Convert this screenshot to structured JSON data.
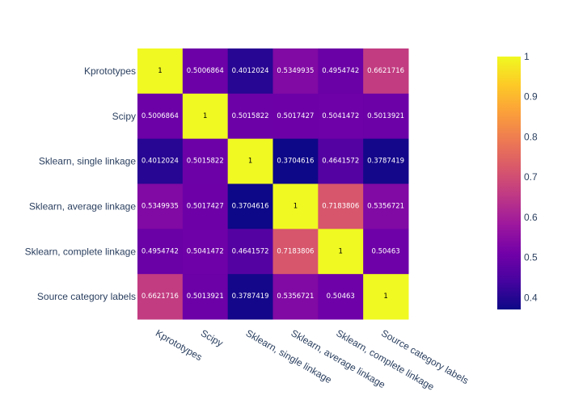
{
  "chart_data": {
    "type": "heatmap",
    "title": "",
    "xlabel": "",
    "ylabel": "",
    "x_categories": [
      "Kprototypes",
      "Scipy",
      "Sklearn, single linkage",
      "Sklearn, average linkage",
      "Sklearn, complete linkage",
      "Source category labels"
    ],
    "y_categories": [
      "Kprototypes",
      "Scipy",
      "Sklearn, single linkage",
      "Sklearn, average linkage",
      "Sklearn, complete linkage",
      "Source category labels"
    ],
    "values": [
      [
        1,
        0.5006864,
        0.4012024,
        0.5349935,
        0.4954742,
        0.6621716
      ],
      [
        0.5006864,
        1,
        0.5015822,
        0.5017427,
        0.5041472,
        0.5013921
      ],
      [
        0.4012024,
        0.5015822,
        1,
        0.3704616,
        0.4641572,
        0.3787419
      ],
      [
        0.5349935,
        0.5017427,
        0.3704616,
        1,
        0.7183806,
        0.5356721
      ],
      [
        0.4954742,
        0.5041472,
        0.4641572,
        0.7183806,
        1,
        0.50463
      ],
      [
        0.6621716,
        0.5013921,
        0.3787419,
        0.5356721,
        0.50463,
        1
      ]
    ],
    "cell_labels": [
      [
        "1",
        "0.5006864",
        "0.4012024",
        "0.5349935",
        "0.4954742",
        "0.6621716"
      ],
      [
        "0.5006864",
        "1",
        "0.5015822",
        "0.5017427",
        "0.5041472",
        "0.5013921"
      ],
      [
        "0.4012024",
        "0.5015822",
        "1",
        "0.3704616",
        "0.4641572",
        "0.3787419"
      ],
      [
        "0.5349935",
        "0.5017427",
        "0.3704616",
        "1",
        "0.7183806",
        "0.5356721"
      ],
      [
        "0.4954742",
        "0.5041472",
        "0.4641572",
        "0.7183806",
        "1",
        "0.50463"
      ],
      [
        "0.6621716",
        "0.5013921",
        "0.3787419",
        "0.5356721",
        "0.50463",
        "1"
      ]
    ],
    "zmin": 0.3704616,
    "zmax": 1,
    "colorscale": [
      "#0d0887",
      "#46039f",
      "#7201a8",
      "#9c179e",
      "#bd3786",
      "#d8576b",
      "#ed7953",
      "#fb9f3a",
      "#fdca26",
      "#f0f921"
    ],
    "colorbar_ticks": [
      "0.4",
      "0.5",
      "0.6",
      "0.7",
      "0.8",
      "0.9",
      "1"
    ],
    "colorbar_tick_values": [
      0.4,
      0.5,
      0.6,
      0.7,
      0.8,
      0.9,
      1
    ],
    "grid": false,
    "legend": "colorbar-right"
  }
}
